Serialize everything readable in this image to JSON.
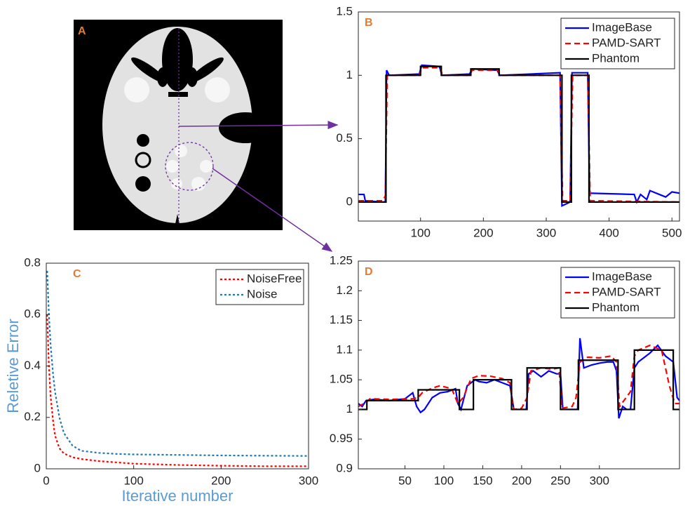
{
  "image_panel": {
    "label": "A"
  },
  "chart_data": [
    {
      "type": "line",
      "label": "B",
      "legend": "upper right",
      "xlim": [
        1,
        512
      ],
      "ylim": [
        -0.15,
        1.5
      ],
      "xticks": [
        100,
        200,
        300,
        400,
        500
      ],
      "yticks": [
        0,
        0.5,
        1,
        1.5
      ],
      "series": [
        {
          "name": "ImageBase",
          "color": "#0000ff",
          "linestyle": "solid",
          "x": [
            1,
            10,
            12,
            40,
            44,
            46,
            50,
            98,
            102,
            130,
            134,
            178,
            182,
            222,
            226,
            322,
            325,
            338,
            341,
            366,
            369,
            440,
            444,
            450,
            460,
            465,
            480,
            490,
            500,
            512
          ],
          "values": [
            0.06,
            0.06,
            0.01,
            0.0,
            0.0,
            1.04,
            1.0,
            1.01,
            1.08,
            1.07,
            1.0,
            1.01,
            1.05,
            1.04,
            1.0,
            1.02,
            -0.03,
            0.0,
            1.02,
            1.02,
            0.07,
            0.06,
            0.0,
            0.06,
            0.02,
            0.09,
            0.06,
            0.04,
            0.08,
            0.07
          ]
        },
        {
          "name": "PAMD-SART",
          "color": "#ff0000",
          "linestyle": "dashed",
          "x": [
            1,
            40,
            44,
            47,
            98,
            102,
            131,
            135,
            178,
            182,
            223,
            227,
            322,
            326,
            338,
            342,
            366,
            370,
            512
          ],
          "values": [
            0.01,
            0.01,
            0.05,
            1.0,
            1.0,
            1.06,
            1.06,
            1.0,
            1.0,
            1.04,
            1.04,
            1.0,
            1.0,
            0.01,
            0.01,
            1.0,
            1.0,
            0.01,
            0.0
          ]
        },
        {
          "name": "Phantom",
          "color": "#000000",
          "linestyle": "solid",
          "x": [
            1,
            45,
            45,
            100,
            100,
            133,
            133,
            180,
            180,
            225,
            225,
            325,
            325,
            340,
            340,
            368,
            368,
            512
          ],
          "values": [
            0,
            0,
            1,
            1,
            1.07,
            1.07,
            1,
            1,
            1.05,
            1.05,
            1,
            1,
            0,
            0,
            1,
            1,
            0,
            0
          ]
        }
      ]
    },
    {
      "type": "line",
      "label": "C",
      "legend": "upper right",
      "x_label": "Iterative number",
      "y_label": "Reletive Error",
      "xlim": [
        0,
        300
      ],
      "ylim": [
        0,
        0.8
      ],
      "xticks": [
        0,
        100,
        200,
        300
      ],
      "yticks": [
        0,
        0.2,
        0.4,
        0.6,
        0.8
      ],
      "series": [
        {
          "name": "NoiseFree",
          "color": "#ff0000",
          "linestyle": "dotted",
          "x": [
            1,
            3,
            5,
            8,
            10,
            15,
            20,
            30,
            40,
            60,
            80,
            100,
            150,
            200,
            250,
            300
          ],
          "values": [
            0.6,
            0.4,
            0.28,
            0.18,
            0.13,
            0.08,
            0.06,
            0.045,
            0.038,
            0.03,
            0.025,
            0.02,
            0.015,
            0.012,
            0.01,
            0.01
          ]
        },
        {
          "name": "Noise",
          "color": "#1f77b4",
          "linestyle": "dotted",
          "x": [
            1,
            3,
            5,
            8,
            10,
            15,
            20,
            30,
            40,
            60,
            80,
            100,
            150,
            200,
            250,
            300
          ],
          "values": [
            0.77,
            0.6,
            0.48,
            0.36,
            0.3,
            0.2,
            0.14,
            0.09,
            0.07,
            0.062,
            0.058,
            0.056,
            0.054,
            0.052,
            0.051,
            0.05
          ]
        }
      ]
    },
    {
      "type": "line",
      "label": "D",
      "legend": "upper right",
      "xlim": [
        -10,
        403
      ],
      "ylim": [
        0.9,
        1.25
      ],
      "xticks": [
        50,
        100,
        150,
        200,
        250,
        300
      ],
      "yticks": [
        0.9,
        0.95,
        1,
        1.05,
        1.1,
        1.15,
        1.2,
        1.25
      ],
      "series": [
        {
          "name": "ImageBase",
          "color": "#0000ff",
          "linestyle": "solid",
          "x": [
            -10,
            -5,
            0,
            10,
            30,
            50,
            60,
            65,
            70,
            75,
            85,
            95,
            105,
            115,
            118,
            122,
            130,
            135,
            140,
            145,
            155,
            165,
            175,
            185,
            190,
            200,
            206,
            209,
            215,
            225,
            235,
            245,
            250,
            253,
            262,
            268,
            272,
            275,
            280,
            290,
            300,
            310,
            318,
            322,
            325,
            330,
            335,
            340,
            345,
            350,
            365,
            375,
            385,
            395,
            400,
            403
          ],
          "values": [
            1.01,
            1.005,
            1.015,
            1.017,
            1.015,
            1.018,
            1.028,
            1.005,
            0.995,
            1.0,
            1.02,
            1.028,
            1.03,
            1.035,
            1.01,
            1.0,
            1.04,
            1.045,
            1.05,
            1.047,
            1.045,
            1.05,
            1.045,
            1.04,
            1.0,
            1.0,
            1.0,
            1.06,
            1.065,
            1.055,
            1.065,
            1.06,
            1.06,
            1.0,
            1.0,
            1.0,
            1.0,
            1.12,
            1.07,
            1.075,
            1.078,
            1.08,
            1.08,
            1.065,
            0.985,
            1.005,
            1.0,
            1.0,
            1.07,
            1.08,
            1.095,
            1.108,
            1.09,
            1.08,
            1.02,
            1.015
          ]
        },
        {
          "name": "PAMD-SART",
          "color": "#ff0000",
          "linestyle": "dashed",
          "x": [
            -10,
            0,
            5,
            30,
            60,
            67,
            72,
            85,
            95,
            110,
            118,
            125,
            135,
            145,
            160,
            175,
            185,
            190,
            200,
            207,
            212,
            225,
            240,
            248,
            252,
            265,
            270,
            275,
            285,
            300,
            315,
            322,
            326,
            340,
            345,
            350,
            365,
            380,
            390,
            397,
            403
          ],
          "values": [
            1.005,
            1.012,
            1.018,
            1.017,
            1.018,
            1.02,
            1.028,
            1.036,
            1.04,
            1.035,
            1.01,
            1.02,
            1.052,
            1.057,
            1.056,
            1.052,
            1.045,
            1.0,
            1.002,
            1.02,
            1.065,
            1.07,
            1.068,
            1.07,
            1.002,
            1.005,
            1.02,
            1.08,
            1.088,
            1.087,
            1.09,
            1.08,
            1.005,
            1.03,
            1.09,
            1.1,
            1.108,
            1.1,
            1.04,
            1.01,
            1.01
          ]
        },
        {
          "name": "Phantom",
          "color": "#000000",
          "linestyle": "solid",
          "x": [
            -10,
            1,
            1,
            67,
            67,
            120,
            120,
            138,
            138,
            187,
            187,
            207,
            207,
            250,
            250,
            273,
            273,
            324,
            324,
            345,
            345,
            395,
            395,
            403
          ],
          "values": [
            1,
            1,
            1.015,
            1.015,
            1.033,
            1.033,
            1,
            1,
            1.05,
            1.05,
            1,
            1,
            1.07,
            1.07,
            1,
            1,
            1.083,
            1.083,
            1,
            1,
            1.1,
            1.1,
            1,
            1
          ]
        }
      ]
    }
  ]
}
